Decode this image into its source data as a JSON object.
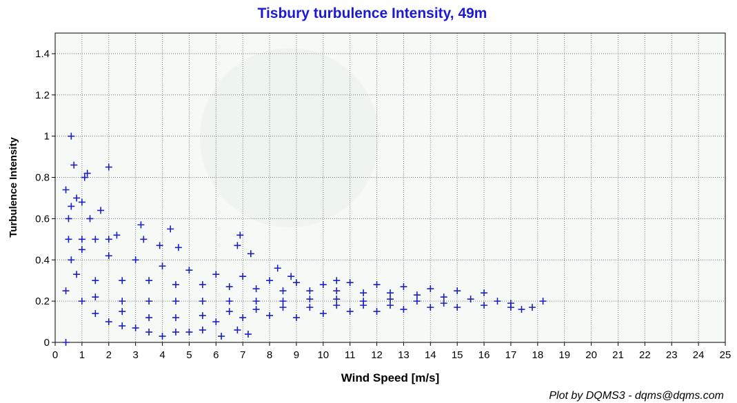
{
  "chart_data": {
    "type": "scatter",
    "title": "Tisbury turbulence Intensity, 49m",
    "x_label": "Wind Speed [m/s]",
    "y_label": "Turbulence Intensity",
    "credit": "Plot by DQMS3 - dqms@dqms.com",
    "color": "#1c1cc0",
    "title_color": "#1a1ad6",
    "grid": true,
    "xlim": [
      0,
      25
    ],
    "ylim": [
      0,
      1.5
    ],
    "xticks": [
      0,
      1,
      2,
      3,
      4,
      5,
      6,
      7,
      8,
      9,
      10,
      11,
      12,
      13,
      14,
      15,
      16,
      17,
      18,
      19,
      20,
      21,
      22,
      23,
      24,
      25
    ],
    "yticks": [
      0,
      0.2,
      0.4,
      0.6,
      0.8,
      1,
      1.2,
      1.4
    ],
    "x": [
      0.4,
      0.4,
      0.4,
      0.6,
      0.7,
      1.1,
      1.2,
      2,
      0.5,
      0.6,
      0.8,
      1,
      1.3,
      1.7,
      3.2,
      4.3,
      6.9,
      0.5,
      1,
      1.5,
      2,
      2.3,
      3.3,
      3.9,
      4.6,
      7.3,
      6.8,
      0.6,
      0.8,
      1,
      1.5,
      2,
      2.5,
      3,
      3.5,
      4,
      4.5,
      5,
      5.5,
      6.2,
      6.8,
      7.2,
      6,
      7,
      8,
      9,
      10,
      11,
      12,
      13,
      14,
      15,
      16,
      17,
      17.4,
      18.2,
      17.8,
      1,
      2,
      3,
      4,
      5,
      6,
      7,
      8,
      9,
      10,
      11,
      12,
      13,
      14,
      15,
      16,
      8.3,
      8.8,
      10.5,
      1.5,
      1.5,
      2.5,
      2.5,
      2.5,
      3.5,
      3.5,
      3.5,
      4.5,
      4.5,
      4.5,
      5.5,
      5.5,
      5.5,
      6.5,
      6.5,
      6.5,
      7.5,
      7.5,
      7.5,
      8.5,
      8.5,
      8.5,
      9.5,
      9.5,
      9.5,
      10.5,
      10.5,
      10.5,
      11.5,
      11.5,
      11.5,
      12.5,
      12.5,
      12.5,
      13.5,
      13.5,
      14.5,
      14.5,
      15.5,
      16.5,
      17
    ],
    "values": [
      0,
      0.25,
      0.74,
      1,
      0.86,
      0.8,
      0.82,
      0.85,
      0.6,
      0.66,
      0.7,
      0.68,
      0.6,
      0.64,
      0.57,
      0.55,
      0.52,
      0.5,
      0.5,
      0.5,
      0.5,
      0.52,
      0.5,
      0.47,
      0.46,
      0.43,
      0.47,
      0.4,
      0.33,
      0.2,
      0.14,
      0.1,
      0.08,
      0.07,
      0.05,
      0.03,
      0.05,
      0.05,
      0.06,
      0.03,
      0.06,
      0.04,
      0.1,
      0.12,
      0.13,
      0.12,
      0.14,
      0.15,
      0.15,
      0.16,
      0.17,
      0.17,
      0.18,
      0.17,
      0.16,
      0.2,
      0.17,
      0.45,
      0.42,
      0.4,
      0.37,
      0.35,
      0.33,
      0.32,
      0.3,
      0.29,
      0.28,
      0.29,
      0.28,
      0.27,
      0.26,
      0.25,
      0.24,
      0.36,
      0.32,
      0.3,
      0.3,
      0.22,
      0.3,
      0.2,
      0.15,
      0.3,
      0.2,
      0.12,
      0.28,
      0.2,
      0.12,
      0.28,
      0.2,
      0.13,
      0.27,
      0.2,
      0.15,
      0.26,
      0.2,
      0.16,
      0.25,
      0.2,
      0.17,
      0.25,
      0.21,
      0.17,
      0.25,
      0.21,
      0.18,
      0.24,
      0.2,
      0.18,
      0.24,
      0.21,
      0.18,
      0.23,
      0.2,
      0.22,
      0.19,
      0.21,
      0.2,
      0.19
    ]
  }
}
